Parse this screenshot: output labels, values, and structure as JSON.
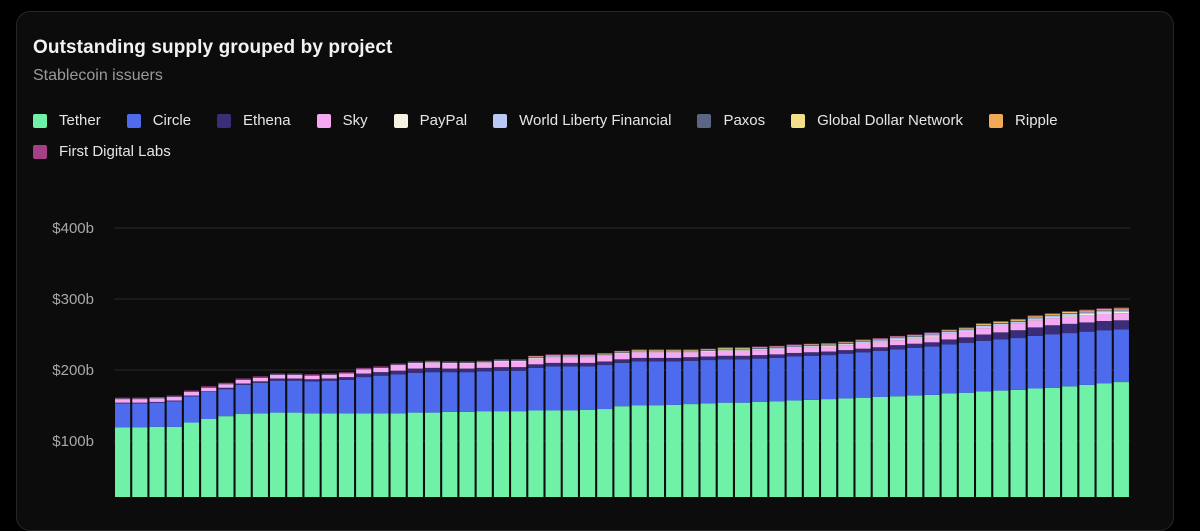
{
  "header": {
    "title": "Outstanding supply grouped by project",
    "subtitle": "Stablecoin issuers"
  },
  "colors": {
    "background": "#0c0c0c",
    "gridline": "#2a2a2a",
    "tick_text": "#a8a8a8"
  },
  "chart_data": {
    "type": "bar",
    "stacked": true,
    "title": "Outstanding supply grouped by project",
    "subtitle": "Stablecoin issuers",
    "ylim": [
      0,
      400
    ],
    "yticks": [
      {
        "value": 100,
        "label": "$100b"
      },
      {
        "value": 200,
        "label": "$200b"
      },
      {
        "value": 300,
        "label": "$300b"
      },
      {
        "value": 400,
        "label": "$400b"
      }
    ],
    "grid": true,
    "legend_position": "top-left",
    "series": [
      {
        "name": "Tether",
        "color": "#6ff2a8",
        "values": [
          119,
          119,
          120,
          120,
          126,
          131,
          135,
          138,
          139,
          140,
          140,
          139,
          139,
          139,
          139,
          139,
          139,
          140,
          140,
          141,
          141,
          142,
          142,
          142,
          143,
          143,
          143,
          144,
          145,
          149,
          150,
          150,
          151,
          152,
          153,
          154,
          154,
          155,
          156,
          157,
          158,
          159,
          160,
          161,
          162,
          163,
          164,
          165,
          167,
          168,
          170,
          171,
          172,
          174,
          175,
          177,
          179,
          181,
          183
        ]
      },
      {
        "name": "Circle",
        "color": "#4e6bee",
        "values": [
          34,
          34,
          34,
          36,
          37,
          38,
          38,
          41,
          43,
          45,
          45,
          45,
          46,
          47,
          51,
          53,
          55,
          56,
          57,
          56,
          56,
          56,
          57,
          57,
          60,
          62,
          62,
          61,
          62,
          61,
          62,
          62,
          61,
          61,
          61,
          61,
          61,
          61,
          61,
          62,
          62,
          62,
          63,
          64,
          65,
          66,
          67,
          68,
          69,
          70,
          71,
          72,
          73,
          74,
          75,
          75,
          75,
          75,
          74
        ]
      },
      {
        "name": "Ethena",
        "color": "#3c2d78",
        "values": [
          1,
          1,
          1,
          1,
          1,
          1,
          2,
          2,
          2,
          3,
          3,
          3,
          3,
          4,
          5,
          5,
          5,
          6,
          6,
          5,
          5,
          5,
          5,
          5,
          5,
          5,
          5,
          5,
          5,
          5,
          5,
          5,
          5,
          5,
          5,
          5,
          5,
          5,
          5,
          5,
          5,
          5,
          5,
          5,
          5,
          6,
          6,
          6,
          7,
          8,
          9,
          10,
          11,
          12,
          13,
          13,
          13,
          13,
          13
        ]
      },
      {
        "name": "Sky",
        "color": "#f4a9f2",
        "values": [
          5,
          5,
          5,
          5,
          5,
          5,
          5,
          5,
          5,
          5,
          5,
          5,
          5,
          5,
          6,
          6,
          7,
          7,
          7,
          7,
          7,
          7,
          8,
          8,
          8,
          8,
          8,
          8,
          8,
          8,
          8,
          8,
          8,
          7,
          7,
          7,
          7,
          7,
          7,
          7,
          7,
          7,
          7,
          7,
          7,
          7,
          7,
          8,
          8,
          8,
          9,
          9,
          9,
          10,
          10,
          10,
          10,
          10,
          10
        ]
      },
      {
        "name": "PayPal",
        "color": "#f5f2e2",
        "values": [
          0,
          0,
          0,
          0,
          0,
          0,
          0,
          0,
          0,
          0,
          0,
          0,
          0,
          0,
          0,
          0,
          1,
          1,
          1,
          1,
          1,
          1,
          1,
          1,
          1,
          1,
          1,
          1,
          1,
          1,
          1,
          1,
          1,
          1,
          1,
          1,
          1,
          1,
          1,
          1,
          1,
          1,
          1,
          1,
          1,
          1,
          1,
          1,
          1,
          1,
          1,
          1,
          1,
          1,
          1,
          2,
          2,
          2,
          2
        ]
      },
      {
        "name": "World Liberty Financial",
        "color": "#b8c9f7",
        "values": [
          0,
          0,
          0,
          0,
          0,
          0,
          0,
          0,
          0,
          0,
          0,
          0,
          0,
          0,
          0,
          0,
          0,
          0,
          0,
          0,
          0,
          0,
          0,
          0,
          0,
          0,
          0,
          0,
          0,
          0,
          0,
          0,
          0,
          0,
          0,
          1,
          1,
          1,
          1,
          1,
          1,
          1,
          1,
          2,
          2,
          2,
          2,
          2,
          2,
          2,
          2,
          2,
          2,
          2,
          2,
          2,
          2,
          2,
          2
        ]
      },
      {
        "name": "Paxos",
        "color": "#5b6684",
        "values": [
          1,
          1,
          1,
          1,
          1,
          1,
          1,
          1,
          1,
          1,
          1,
          1,
          1,
          1,
          1,
          1,
          1,
          1,
          1,
          1,
          1,
          1,
          1,
          1,
          1,
          1,
          1,
          1,
          1,
          1,
          1,
          1,
          1,
          1,
          1,
          1,
          1,
          1,
          1,
          1,
          1,
          1,
          1,
          1,
          1,
          1,
          1,
          1,
          1,
          1,
          1,
          1,
          1,
          1,
          1,
          1,
          1,
          1,
          1
        ]
      },
      {
        "name": "Global Dollar Network",
        "color": "#f3df88",
        "values": [
          0,
          0,
          0,
          0,
          0,
          0,
          0,
          0,
          0,
          0,
          0,
          0,
          0,
          0,
          0,
          0,
          0,
          0,
          0,
          0,
          0,
          0,
          0,
          0,
          1,
          1,
          1,
          1,
          1,
          1,
          1,
          1,
          1,
          1,
          1,
          1,
          1,
          1,
          1,
          1,
          1,
          1,
          1,
          1,
          1,
          1,
          1,
          1,
          1,
          1,
          1,
          1,
          1,
          1,
          1,
          1,
          1,
          1,
          1
        ]
      },
      {
        "name": "Ripple",
        "color": "#f2a955",
        "values": [
          0,
          0,
          0,
          0,
          0,
          0,
          0,
          0,
          0,
          0,
          0,
          0,
          0,
          0,
          0,
          0,
          0,
          0,
          0,
          0,
          0,
          0,
          0,
          0,
          0,
          0,
          0,
          0,
          0,
          0,
          0,
          0,
          0,
          0,
          0,
          0,
          0,
          0,
          0,
          0,
          0,
          0,
          0,
          0,
          0,
          0,
          0,
          0,
          0,
          0,
          1,
          1,
          1,
          1,
          1,
          1,
          1,
          1,
          1
        ]
      },
      {
        "name": "First Digital Labs",
        "color": "#a23f86",
        "values": [
          1,
          1,
          1,
          1,
          1,
          1,
          1,
          1,
          1,
          1,
          1,
          1,
          1,
          1,
          1,
          1,
          1,
          1,
          1,
          1,
          1,
          1,
          1,
          1,
          1,
          1,
          1,
          1,
          1,
          1,
          1,
          1,
          1,
          1,
          1,
          1,
          1,
          1,
          1,
          1,
          1,
          1,
          1,
          1,
          1,
          1,
          1,
          1,
          1,
          1,
          1,
          1,
          1,
          1,
          1,
          1,
          1,
          1,
          1
        ]
      }
    ]
  }
}
